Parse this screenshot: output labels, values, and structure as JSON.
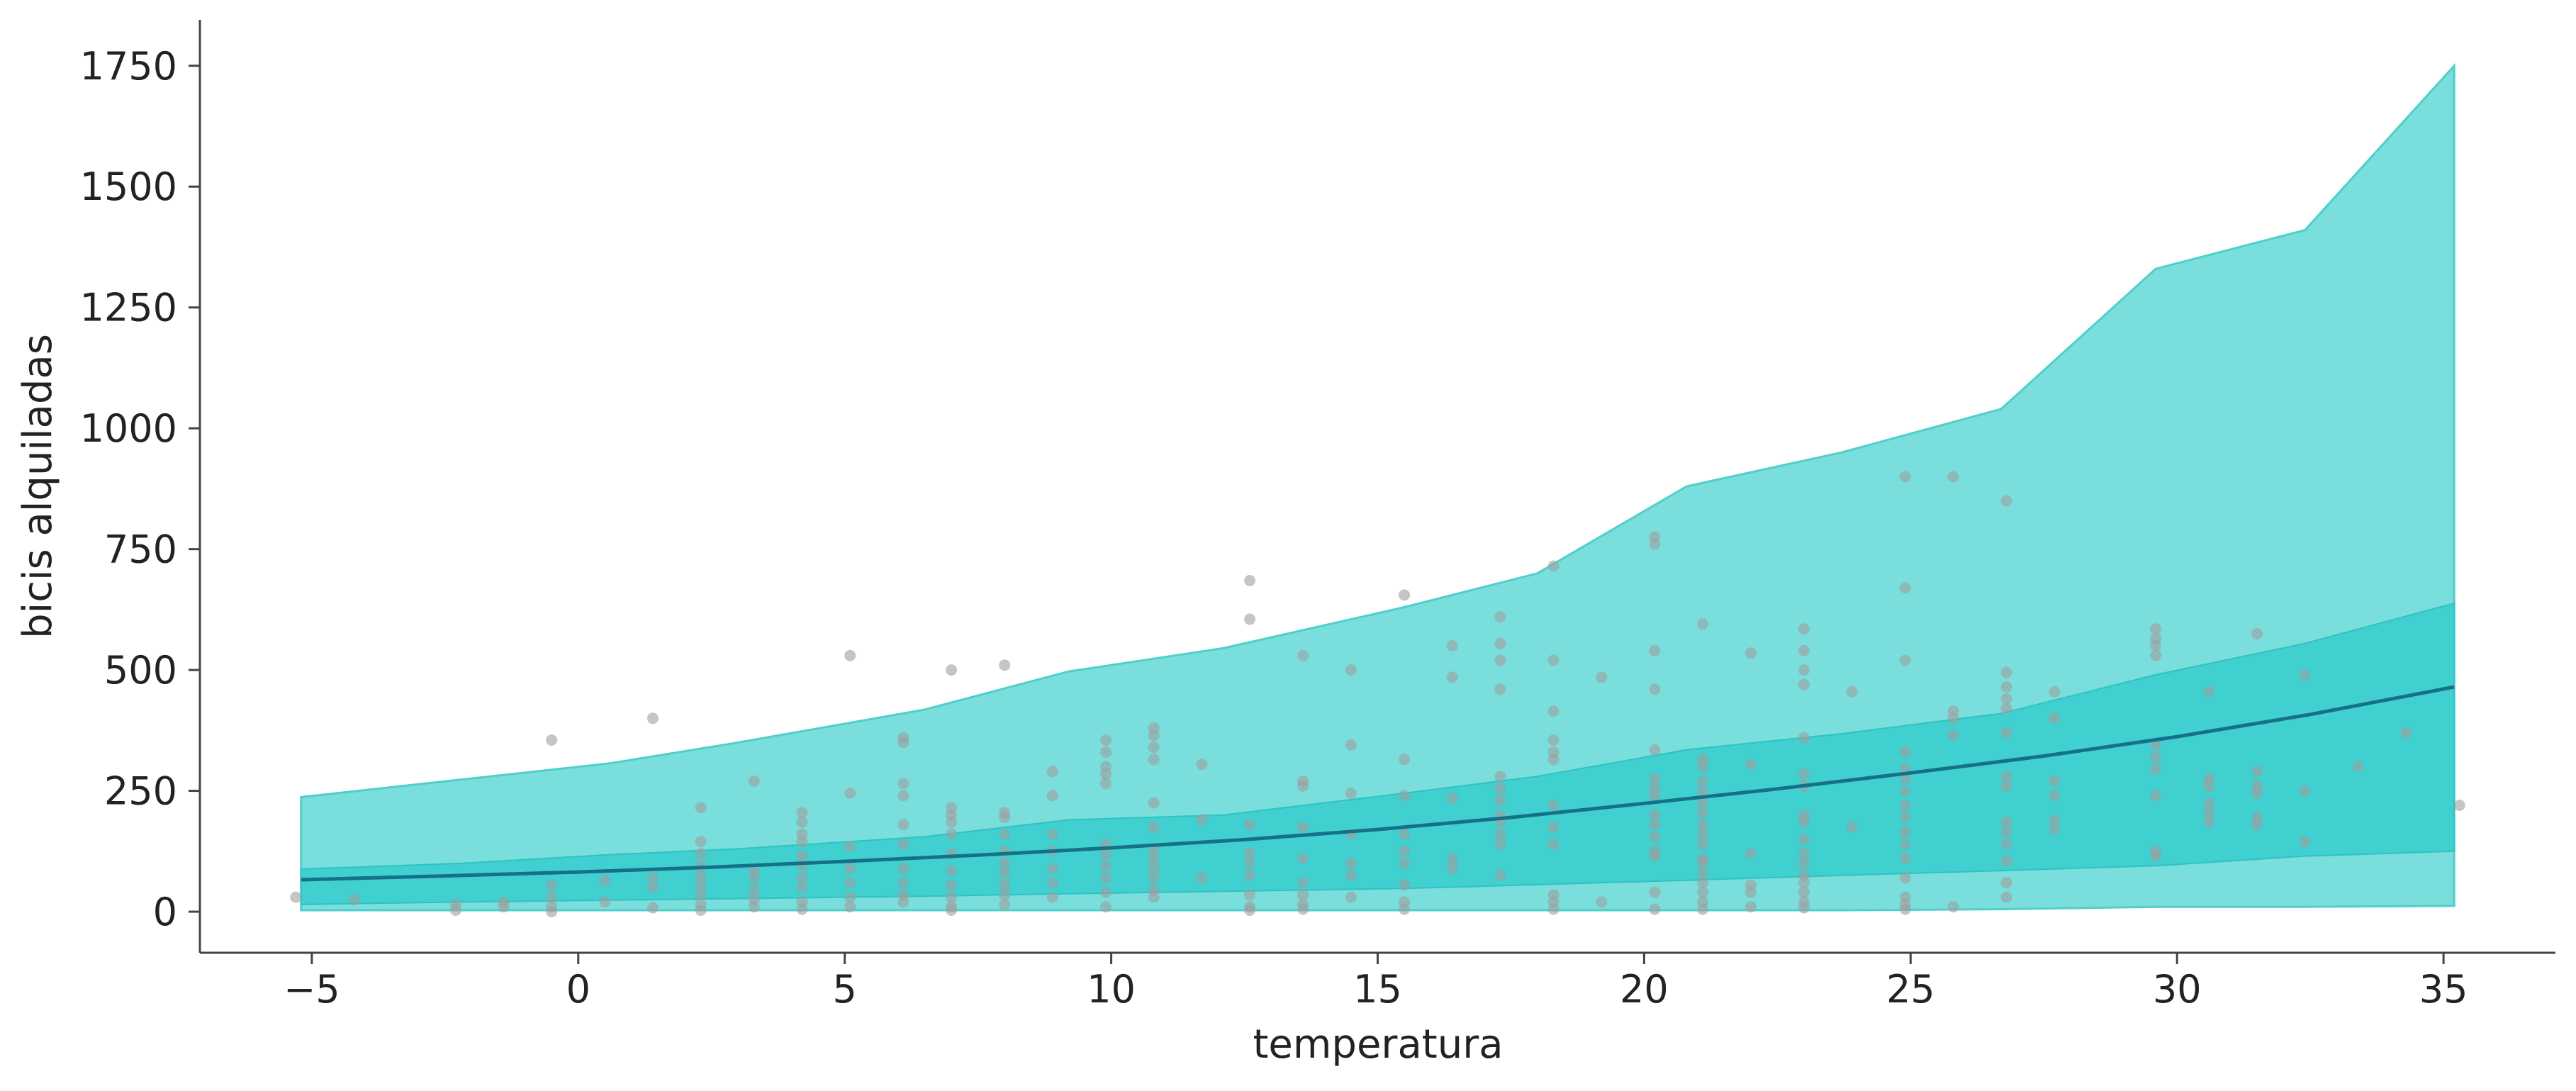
{
  "chart_data": {
    "type": "scatter",
    "title": "",
    "xlabel": "temperatura",
    "ylabel": "bicis alquiladas",
    "xlim": [
      -7.1,
      37.1
    ],
    "ylim": [
      -85,
      1845
    ],
    "xticks": [
      -5,
      0,
      5,
      10,
      15,
      20,
      25,
      30,
      35
    ],
    "xtick_labels": [
      "−5",
      "0",
      "5",
      "10",
      "15",
      "20",
      "25",
      "30",
      "35"
    ],
    "yticks": [
      0,
      250,
      500,
      750,
      1000,
      1250,
      1500,
      1750
    ],
    "ytick_labels": [
      "0",
      "250",
      "500",
      "750",
      "1000",
      "1250",
      "1500",
      "1750"
    ],
    "grid": false,
    "colors": {
      "outer_band": "#7ADEDC",
      "inner_band": "#3ECFCF",
      "mean_line": "#17708A",
      "points": "#9E9E9E",
      "axis": "#444444"
    },
    "outer_band": {
      "x": [
        -5.2,
        0.6,
        3.0,
        6.5,
        9.2,
        12.1,
        15.5,
        18.0,
        20.8,
        23.7,
        26.7,
        29.6,
        32.4,
        35.2
      ],
      "lower": [
        3,
        3,
        3,
        3,
        3,
        3,
        3,
        3,
        3,
        3,
        5,
        10,
        10,
        12
      ],
      "upper": [
        237,
        307,
        350,
        418,
        497,
        545,
        630,
        700,
        880,
        950,
        1040,
        1330,
        1410,
        1750
      ]
    },
    "inner_band": {
      "x": [
        -5.2,
        -2.2,
        0.6,
        3.0,
        6.5,
        9.2,
        12.1,
        15.5,
        18.0,
        20.8,
        23.7,
        26.7,
        29.6,
        32.4,
        35.2
      ],
      "lower": [
        15,
        20,
        24,
        27,
        32,
        37,
        42,
        48,
        56,
        65,
        75,
        85,
        95,
        115,
        125
      ],
      "upper": [
        88,
        100,
        118,
        130,
        155,
        190,
        200,
        245,
        280,
        335,
        368,
        410,
        490,
        555,
        638
      ]
    },
    "mean_line": {
      "x": [
        -5.2,
        -2.5,
        0,
        2.5,
        5,
        7.5,
        10,
        12.5,
        15,
        17.5,
        20,
        22.5,
        25,
        27.5,
        30,
        32.5,
        35.2
      ],
      "y": [
        66,
        74,
        82,
        92,
        104,
        117,
        132,
        149,
        170,
        195,
        224,
        254,
        287,
        322,
        362,
        408,
        465
      ]
    },
    "points": [
      [
        -5.3,
        30
      ],
      [
        -4.2,
        25
      ],
      [
        -2.3,
        15
      ],
      [
        -2.3,
        3
      ],
      [
        -1.4,
        10
      ],
      [
        -1.4,
        20
      ],
      [
        -0.5,
        355
      ],
      [
        -0.5,
        55
      ],
      [
        -0.5,
        30
      ],
      [
        -0.5,
        10
      ],
      [
        -0.5,
        0
      ],
      [
        0.5,
        65
      ],
      [
        0.5,
        20
      ],
      [
        1.4,
        400
      ],
      [
        1.4,
        70
      ],
      [
        1.4,
        50
      ],
      [
        1.4,
        8
      ],
      [
        2.3,
        215
      ],
      [
        2.3,
        145
      ],
      [
        2.3,
        120
      ],
      [
        2.3,
        95
      ],
      [
        2.3,
        75
      ],
      [
        2.3,
        55
      ],
      [
        2.3,
        35
      ],
      [
        2.3,
        15
      ],
      [
        2.3,
        3
      ],
      [
        3.3,
        270
      ],
      [
        3.3,
        85
      ],
      [
        3.3,
        70
      ],
      [
        3.3,
        45
      ],
      [
        3.3,
        25
      ],
      [
        3.3,
        10
      ],
      [
        4.2,
        205
      ],
      [
        4.2,
        185
      ],
      [
        4.2,
        160
      ],
      [
        4.2,
        145
      ],
      [
        4.2,
        115
      ],
      [
        4.2,
        95
      ],
      [
        4.2,
        70
      ],
      [
        4.2,
        50
      ],
      [
        4.2,
        20
      ],
      [
        4.2,
        5
      ],
      [
        5.1,
        530
      ],
      [
        5.1,
        245
      ],
      [
        5.1,
        135
      ],
      [
        5.1,
        90
      ],
      [
        5.1,
        60
      ],
      [
        5.1,
        30
      ],
      [
        5.1,
        10
      ],
      [
        6.1,
        360
      ],
      [
        6.1,
        350
      ],
      [
        6.1,
        265
      ],
      [
        6.1,
        240
      ],
      [
        6.1,
        180
      ],
      [
        6.1,
        140
      ],
      [
        6.1,
        90
      ],
      [
        6.1,
        60
      ],
      [
        6.1,
        35
      ],
      [
        6.1,
        20
      ],
      [
        7.0,
        500
      ],
      [
        7.0,
        215
      ],
      [
        7.0,
        200
      ],
      [
        7.0,
        185
      ],
      [
        7.0,
        160
      ],
      [
        7.0,
        120
      ],
      [
        7.0,
        85
      ],
      [
        7.0,
        55
      ],
      [
        7.0,
        30
      ],
      [
        7.0,
        10
      ],
      [
        7.0,
        3
      ],
      [
        8.0,
        510
      ],
      [
        8.0,
        205
      ],
      [
        8.0,
        195
      ],
      [
        8.0,
        160
      ],
      [
        8.0,
        125
      ],
      [
        8.0,
        100
      ],
      [
        8.0,
        80
      ],
      [
        8.0,
        55
      ],
      [
        8.0,
        35
      ],
      [
        8.0,
        15
      ],
      [
        8.9,
        290
      ],
      [
        8.9,
        240
      ],
      [
        8.9,
        160
      ],
      [
        8.9,
        125
      ],
      [
        8.9,
        90
      ],
      [
        8.9,
        60
      ],
      [
        8.9,
        30
      ],
      [
        9.9,
        355
      ],
      [
        9.9,
        330
      ],
      [
        9.9,
        300
      ],
      [
        9.9,
        285
      ],
      [
        9.9,
        265
      ],
      [
        9.9,
        140
      ],
      [
        9.9,
        120
      ],
      [
        9.9,
        95
      ],
      [
        9.9,
        70
      ],
      [
        9.9,
        40
      ],
      [
        9.9,
        10
      ],
      [
        10.8,
        380
      ],
      [
        10.8,
        365
      ],
      [
        10.8,
        340
      ],
      [
        10.8,
        315
      ],
      [
        10.8,
        225
      ],
      [
        10.8,
        175
      ],
      [
        10.8,
        130
      ],
      [
        10.8,
        110
      ],
      [
        10.8,
        90
      ],
      [
        10.8,
        70
      ],
      [
        10.8,
        45
      ],
      [
        10.8,
        30
      ],
      [
        11.7,
        305
      ],
      [
        11.7,
        190
      ],
      [
        11.7,
        70
      ],
      [
        12.6,
        685
      ],
      [
        12.6,
        605
      ],
      [
        12.6,
        180
      ],
      [
        12.6,
        120
      ],
      [
        12.6,
        100
      ],
      [
        12.6,
        75
      ],
      [
        12.6,
        35
      ],
      [
        12.6,
        10
      ],
      [
        12.6,
        3
      ],
      [
        13.6,
        530
      ],
      [
        13.6,
        270
      ],
      [
        13.6,
        260
      ],
      [
        13.6,
        175
      ],
      [
        13.6,
        110
      ],
      [
        13.6,
        60
      ],
      [
        13.6,
        35
      ],
      [
        13.6,
        15
      ],
      [
        13.6,
        5
      ],
      [
        14.5,
        500
      ],
      [
        14.5,
        345
      ],
      [
        14.5,
        245
      ],
      [
        14.5,
        160
      ],
      [
        14.5,
        100
      ],
      [
        14.5,
        75
      ],
      [
        14.5,
        30
      ],
      [
        15.5,
        655
      ],
      [
        15.5,
        315
      ],
      [
        15.5,
        240
      ],
      [
        15.5,
        160
      ],
      [
        15.5,
        125
      ],
      [
        15.5,
        100
      ],
      [
        15.5,
        55
      ],
      [
        15.5,
        20
      ],
      [
        15.5,
        5
      ],
      [
        16.4,
        550
      ],
      [
        16.4,
        485
      ],
      [
        16.4,
        235
      ],
      [
        16.4,
        110
      ],
      [
        16.4,
        90
      ],
      [
        17.3,
        610
      ],
      [
        17.3,
        555
      ],
      [
        17.3,
        520
      ],
      [
        17.3,
        460
      ],
      [
        17.3,
        280
      ],
      [
        17.3,
        255
      ],
      [
        17.3,
        230
      ],
      [
        17.3,
        200
      ],
      [
        17.3,
        185
      ],
      [
        17.3,
        160
      ],
      [
        17.3,
        140
      ],
      [
        17.3,
        75
      ],
      [
        18.3,
        715
      ],
      [
        18.3,
        520
      ],
      [
        18.3,
        415
      ],
      [
        18.3,
        355
      ],
      [
        18.3,
        330
      ],
      [
        18.3,
        315
      ],
      [
        18.3,
        220
      ],
      [
        18.3,
        175
      ],
      [
        18.3,
        140
      ],
      [
        18.3,
        35
      ],
      [
        18.3,
        20
      ],
      [
        18.3,
        5
      ],
      [
        19.2,
        485
      ],
      [
        19.2,
        20
      ],
      [
        20.2,
        775
      ],
      [
        20.2,
        760
      ],
      [
        20.2,
        540
      ],
      [
        20.2,
        460
      ],
      [
        20.2,
        335
      ],
      [
        20.2,
        275
      ],
      [
        20.2,
        255
      ],
      [
        20.2,
        240
      ],
      [
        20.2,
        200
      ],
      [
        20.2,
        180
      ],
      [
        20.2,
        155
      ],
      [
        20.2,
        125
      ],
      [
        20.2,
        115
      ],
      [
        20.2,
        40
      ],
      [
        20.2,
        5
      ],
      [
        21.1,
        595
      ],
      [
        21.1,
        315
      ],
      [
        21.1,
        300
      ],
      [
        21.1,
        270
      ],
      [
        21.1,
        250
      ],
      [
        21.1,
        225
      ],
      [
        21.1,
        205
      ],
      [
        21.1,
        180
      ],
      [
        21.1,
        160
      ],
      [
        21.1,
        140
      ],
      [
        21.1,
        110
      ],
      [
        21.1,
        100
      ],
      [
        21.1,
        80
      ],
      [
        21.1,
        60
      ],
      [
        21.1,
        40
      ],
      [
        21.1,
        20
      ],
      [
        21.1,
        5
      ],
      [
        22.0,
        535
      ],
      [
        22.0,
        305
      ],
      [
        22.0,
        120
      ],
      [
        22.0,
        55
      ],
      [
        22.0,
        40
      ],
      [
        22.0,
        10
      ],
      [
        23.0,
        585
      ],
      [
        23.0,
        540
      ],
      [
        23.0,
        500
      ],
      [
        23.0,
        470
      ],
      [
        23.0,
        360
      ],
      [
        23.0,
        285
      ],
      [
        23.0,
        260
      ],
      [
        23.0,
        200
      ],
      [
        23.0,
        185
      ],
      [
        23.0,
        150
      ],
      [
        23.0,
        120
      ],
      [
        23.0,
        100
      ],
      [
        23.0,
        75
      ],
      [
        23.0,
        60
      ],
      [
        23.0,
        40
      ],
      [
        23.0,
        20
      ],
      [
        23.0,
        8
      ],
      [
        23.9,
        455
      ],
      [
        23.9,
        175
      ],
      [
        24.9,
        900
      ],
      [
        24.9,
        670
      ],
      [
        24.9,
        520
      ],
      [
        24.9,
        330
      ],
      [
        24.9,
        295
      ],
      [
        24.9,
        275
      ],
      [
        24.9,
        250
      ],
      [
        24.9,
        220
      ],
      [
        24.9,
        195
      ],
      [
        24.9,
        165
      ],
      [
        24.9,
        140
      ],
      [
        24.9,
        110
      ],
      [
        24.9,
        70
      ],
      [
        24.9,
        30
      ],
      [
        24.9,
        15
      ],
      [
        24.9,
        5
      ],
      [
        25.8,
        900
      ],
      [
        25.8,
        415
      ],
      [
        25.8,
        400
      ],
      [
        25.8,
        365
      ],
      [
        25.8,
        10
      ],
      [
        26.8,
        850
      ],
      [
        26.8,
        495
      ],
      [
        26.8,
        465
      ],
      [
        26.8,
        440
      ],
      [
        26.8,
        420
      ],
      [
        26.8,
        370
      ],
      [
        26.8,
        280
      ],
      [
        26.8,
        260
      ],
      [
        26.8,
        185
      ],
      [
        26.8,
        165
      ],
      [
        26.8,
        140
      ],
      [
        26.8,
        105
      ],
      [
        26.8,
        60
      ],
      [
        26.8,
        30
      ],
      [
        27.7,
        455
      ],
      [
        27.7,
        400
      ],
      [
        27.7,
        270
      ],
      [
        27.7,
        240
      ],
      [
        27.7,
        190
      ],
      [
        27.7,
        170
      ],
      [
        29.6,
        585
      ],
      [
        29.6,
        565
      ],
      [
        29.6,
        550
      ],
      [
        29.6,
        530
      ],
      [
        29.6,
        345
      ],
      [
        29.6,
        320
      ],
      [
        29.6,
        295
      ],
      [
        29.6,
        240
      ],
      [
        29.6,
        125
      ],
      [
        29.6,
        115
      ],
      [
        30.6,
        455
      ],
      [
        30.6,
        275
      ],
      [
        30.6,
        260
      ],
      [
        30.6,
        225
      ],
      [
        30.6,
        205
      ],
      [
        30.6,
        185
      ],
      [
        31.5,
        575
      ],
      [
        31.5,
        290
      ],
      [
        31.5,
        260
      ],
      [
        31.5,
        245
      ],
      [
        31.5,
        195
      ],
      [
        31.5,
        180
      ],
      [
        32.4,
        490
      ],
      [
        32.4,
        250
      ],
      [
        32.4,
        145
      ],
      [
        33.4,
        300
      ],
      [
        34.3,
        370
      ],
      [
        35.3,
        220
      ]
    ]
  }
}
